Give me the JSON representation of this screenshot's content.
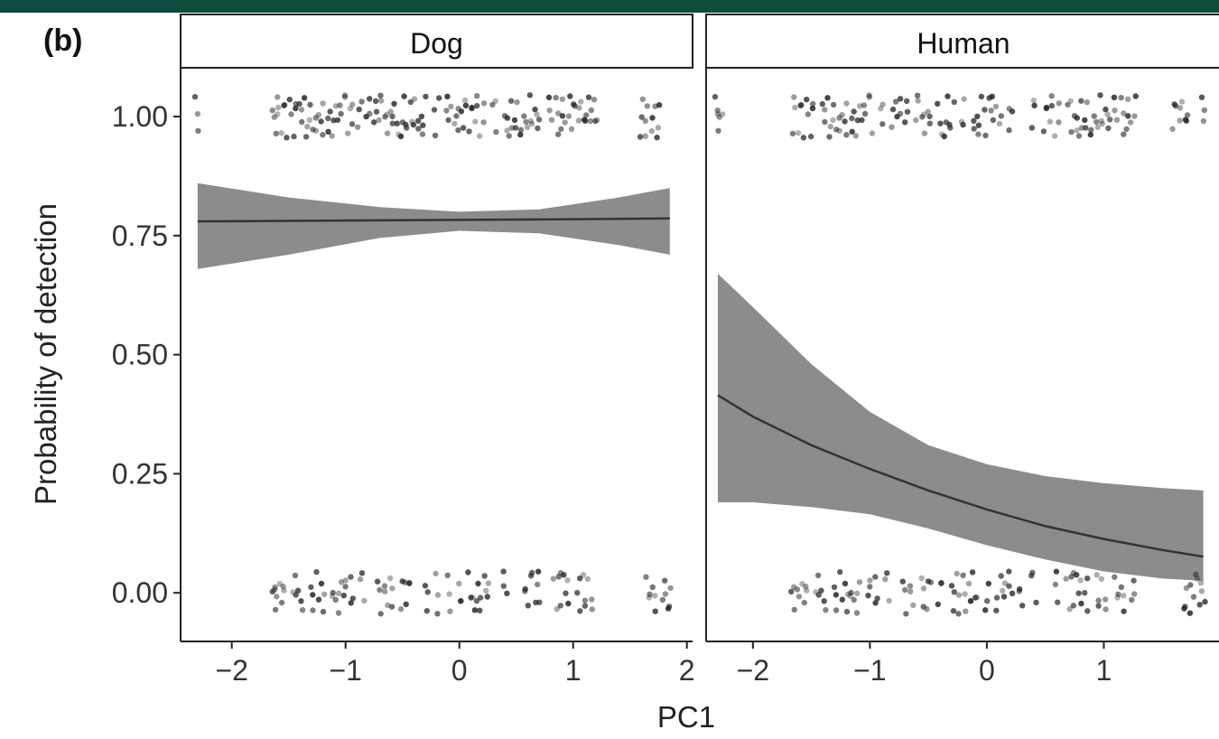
{
  "theme": {
    "top_bar_color": "#0f4a3e",
    "band_color": "#8c8c8c",
    "line_color": "#333333",
    "point_color": "#222222",
    "frame_color": "#222222"
  },
  "panel_label": "(b)",
  "chart_data": {
    "type": "scatter",
    "xlabel": "PC1",
    "ylabel": "Probability of detection",
    "ylim": [
      -0.1,
      1.1
    ],
    "yticks": [
      0.0,
      0.25,
      0.5,
      0.75,
      1.0
    ],
    "ytick_labels": [
      "0.00",
      "0.25",
      "0.50",
      "0.75",
      "1.00"
    ],
    "xticks": [
      -2,
      -1,
      0,
      1,
      2
    ],
    "xtick_labels": [
      "−2",
      "−1",
      "0",
      "1",
      "2"
    ],
    "facets": [
      {
        "strip_label": "Dog",
        "xlim": [
          -2.45,
          2.05
        ],
        "fit": {
          "x": [
            -2.3,
            -1.5,
            -0.7,
            0.0,
            0.7,
            1.4,
            1.85
          ],
          "y": [
            0.78,
            0.781,
            0.782,
            0.783,
            0.784,
            0.785,
            0.786
          ],
          "lower": [
            0.68,
            0.71,
            0.745,
            0.76,
            0.755,
            0.73,
            0.71
          ],
          "upper": [
            0.86,
            0.83,
            0.81,
            0.8,
            0.805,
            0.83,
            0.85
          ]
        },
        "points_y1_x": [
          -2.3,
          -1.62,
          -1.6,
          -1.55,
          -1.5,
          -1.45,
          -1.4,
          -1.35,
          -1.3,
          -1.25,
          -1.2,
          -1.15,
          -1.1,
          -1.05,
          -1.0,
          -0.95,
          -0.88,
          -0.8,
          -0.75,
          -0.7,
          -0.65,
          -0.6,
          -0.55,
          -0.5,
          -0.45,
          -0.4,
          -0.35,
          -0.3,
          -0.2,
          -0.1,
          -0.05,
          0.0,
          0.05,
          0.1,
          0.15,
          0.2,
          0.3,
          0.4,
          0.45,
          0.5,
          0.55,
          0.6,
          0.65,
          0.7,
          0.8,
          0.85,
          0.9,
          0.95,
          1.0,
          1.05,
          1.1,
          1.15,
          1.2,
          1.6,
          1.65,
          1.7,
          1.75
        ],
        "points_y0_x": [
          -1.62,
          -1.6,
          -1.55,
          -1.45,
          -1.4,
          -1.3,
          -1.25,
          -1.2,
          -1.1,
          -1.05,
          -1.0,
          -0.95,
          -0.85,
          -0.7,
          -0.65,
          -0.6,
          -0.5,
          -0.45,
          -0.3,
          -0.2,
          -0.1,
          0.0,
          0.1,
          0.15,
          0.2,
          0.25,
          0.4,
          0.6,
          0.65,
          0.7,
          0.85,
          0.9,
          0.95,
          1.05,
          1.1,
          1.15,
          1.65,
          1.7,
          1.8,
          1.85
        ]
      },
      {
        "strip_label": "Human",
        "xlim": [
          -2.4,
          2.0
        ],
        "fit": {
          "x": [
            -2.3,
            -2.0,
            -1.5,
            -1.0,
            -0.5,
            0.0,
            0.5,
            1.0,
            1.5,
            1.85
          ],
          "y": [
            0.415,
            0.37,
            0.31,
            0.26,
            0.215,
            0.175,
            0.14,
            0.113,
            0.09,
            0.076
          ],
          "lower": [
            0.19,
            0.19,
            0.18,
            0.165,
            0.135,
            0.1,
            0.07,
            0.045,
            0.03,
            0.025
          ],
          "upper": [
            0.67,
            0.6,
            0.48,
            0.38,
            0.31,
            0.27,
            0.245,
            0.23,
            0.22,
            0.215
          ]
        },
        "points_y1_x": [
          -2.3,
          -2.28,
          -1.65,
          -1.6,
          -1.55,
          -1.5,
          -1.4,
          -1.35,
          -1.3,
          -1.25,
          -1.2,
          -1.15,
          -1.1,
          -1.05,
          -1.0,
          -0.9,
          -0.8,
          -0.75,
          -0.7,
          -0.6,
          -0.55,
          -0.5,
          -0.4,
          -0.35,
          -0.3,
          -0.2,
          -0.1,
          -0.05,
          0.0,
          0.05,
          0.1,
          0.2,
          0.4,
          0.5,
          0.55,
          0.6,
          0.7,
          0.75,
          0.8,
          0.85,
          0.9,
          0.95,
          1.0,
          1.05,
          1.1,
          1.15,
          1.2,
          1.25,
          1.6,
          1.65,
          1.7,
          1.85
        ],
        "points_y0_x": [
          -1.65,
          -1.6,
          -1.55,
          -1.45,
          -1.4,
          -1.3,
          -1.25,
          -1.2,
          -1.15,
          -1.1,
          -1.0,
          -0.95,
          -0.85,
          -0.7,
          -0.65,
          -0.55,
          -0.5,
          -0.4,
          -0.3,
          -0.25,
          -0.2,
          -0.15,
          -0.1,
          0.0,
          0.1,
          0.15,
          0.2,
          0.3,
          0.4,
          0.6,
          0.7,
          0.75,
          0.8,
          0.85,
          0.95,
          1.0,
          1.1,
          1.15,
          1.25,
          1.7,
          1.75,
          1.8,
          1.85
        ]
      }
    ]
  }
}
